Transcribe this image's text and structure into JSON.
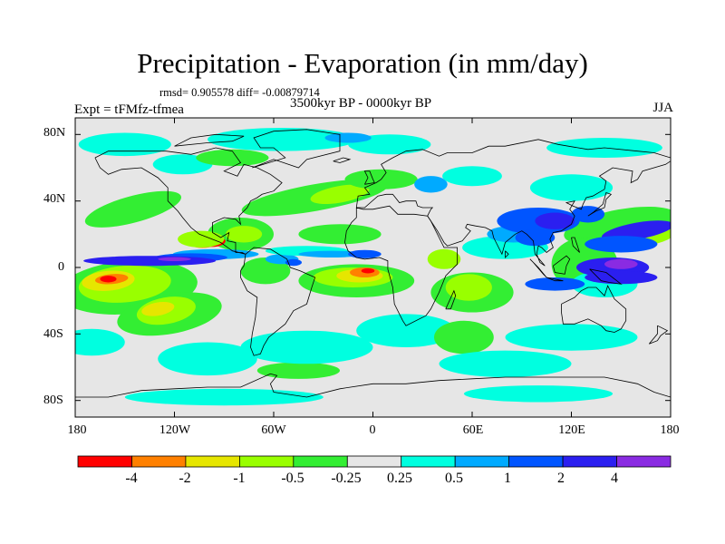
{
  "title": "Precipitation - Evaporation (in mm/day)",
  "stats": "rmsd= 0.905578 diff= -0.00879714",
  "experiment": "Expt = tFMfz-tfmea",
  "period": "3500kyr BP - 0000kyr BP",
  "season": "JJA",
  "axes": {
    "lat_ticks": [
      "80N",
      "40N",
      "0",
      "40S",
      "80S"
    ],
    "lon_ticks": [
      "180",
      "120W",
      "60W",
      "0",
      "60E",
      "120E",
      "180"
    ]
  },
  "colorbar": {
    "labels": [
      "-4",
      "-2",
      "-1",
      "-0.5",
      "-0.25",
      "0.25",
      "0.5",
      "1",
      "2",
      "4"
    ],
    "colors": [
      "#ff0000",
      "#ff8000",
      "#e6e600",
      "#99ff00",
      "#33ee33",
      "#e6e6e6",
      "#00ffe0",
      "#00aaff",
      "#0055ff",
      "#2b1ff0",
      "#8a2be2"
    ]
  },
  "field_colors": {
    "neutral": "#e6e6e6",
    "green": "#33ee33",
    "light_green": "#99ff00",
    "yellow": "#e6e600",
    "orange": "#ff8000",
    "red": "#ff0000",
    "cyan": "#00ffe0",
    "sky": "#00aaff",
    "blue": "#0055ff",
    "dark_blue": "#2b1ff0",
    "purple": "#8a2be2"
  }
}
